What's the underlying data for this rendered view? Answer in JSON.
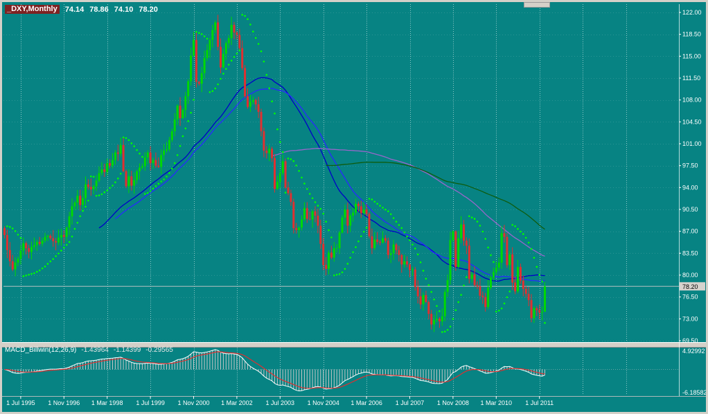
{
  "header": {
    "symbol": "_DXY,Monthly",
    "open": "74.14",
    "high": "78.86",
    "low": "74.10",
    "close": "78.20"
  },
  "price_axis": {
    "ticks": [
      {
        "label": "122.00",
        "value": 122.0
      },
      {
        "label": "118.50",
        "value": 118.5
      },
      {
        "label": "115.00",
        "value": 115.0
      },
      {
        "label": "111.50",
        "value": 111.5
      },
      {
        "label": "108.00",
        "value": 108.0
      },
      {
        "label": "104.50",
        "value": 104.5
      },
      {
        "label": "101.00",
        "value": 101.0
      },
      {
        "label": "97.50",
        "value": 97.5
      },
      {
        "label": "94.00",
        "value": 94.0
      },
      {
        "label": "90.50",
        "value": 90.5
      },
      {
        "label": "87.00",
        "value": 87.0
      },
      {
        "label": "83.50",
        "value": 83.5
      },
      {
        "label": "80.00",
        "value": 80.0
      },
      {
        "label": "76.50",
        "value": 76.5
      },
      {
        "label": "73.00",
        "value": 73.0
      },
      {
        "label": "69.50",
        "value": 69.5
      }
    ],
    "current": {
      "label": "78.20",
      "value": 78.2
    }
  },
  "time_axis": {
    "labels": [
      {
        "text": "1 Jul 1995",
        "m": 6
      },
      {
        "text": "1 Nov 1996",
        "m": 22
      },
      {
        "text": "1 Mar 1998",
        "m": 38
      },
      {
        "text": "1 Jul 1999",
        "m": 54
      },
      {
        "text": "1 Nov 2000",
        "m": 70
      },
      {
        "text": "1 Mar 2002",
        "m": 86
      },
      {
        "text": "1 Jul 2003",
        "m": 102
      },
      {
        "text": "1 Nov 2004",
        "m": 118
      },
      {
        "text": "1 Mar 2006",
        "m": 134
      },
      {
        "text": "1 Jul 2007",
        "m": 150
      },
      {
        "text": "1 Nov 2008",
        "m": 166
      },
      {
        "text": "1 Mar 2010",
        "m": 182
      },
      {
        "text": "1 Jul 2011",
        "m": 198
      }
    ]
  },
  "macd": {
    "title": "MACD_Billwin(12,26,9)",
    "value_macd": "-1.43964",
    "value_signal": "-1.14399",
    "value_osma": "-0.29565",
    "axis": {
      "max": 4.92992,
      "max_label": "4.92992",
      "min": -6.18582,
      "min_label": "-6.18582"
    }
  },
  "colors": {
    "background": "#078383",
    "frame": "#d4d0c8",
    "up": "#00d800",
    "down": "#e03030",
    "sar": "#00ff00",
    "grid": "#ffffff",
    "axis_text": "#ffffff",
    "hist": "#c8c8c8",
    "macd_line": "#ffffff",
    "signal_line": "#e03030",
    "price_line": "#c8c8c8"
  },
  "chart_data": {
    "type": "candlestick",
    "symbol": "_DXY",
    "timeframe": "Monthly",
    "x_range": [
      "1995-01",
      "2011-09"
    ],
    "ylim": [
      69.5,
      122.0
    ],
    "grid": "vertical-dashed",
    "first_open": 87.5,
    "monthly_closes": {
      "1995": [
        86.4,
        84.0,
        82.2,
        80.9,
        82.0,
        82.6,
        83.9,
        85.1,
        84.3,
        83.7,
        84.5,
        84.8
      ],
      "1996": [
        85.3,
        85.0,
        85.5,
        86.1,
        86.3,
        85.9,
        85.4,
        85.2,
        86.0,
        86.4,
        86.1,
        87.6
      ],
      "1997": [
        89.4,
        91.0,
        91.6,
        92.7,
        91.2,
        92.3,
        94.5,
        94.1,
        93.7,
        94.2,
        95.1,
        96.3
      ],
      "1998": [
        96.9,
        96.5,
        97.9,
        97.5,
        98.4,
        99.6,
        99.4,
        100.8,
        96.6,
        94.2,
        95.8,
        94.3
      ],
      "1999": [
        95.2,
        96.6,
        97.2,
        97.4,
        98.8,
        99.6,
        97.9,
        98.4,
        97.5,
        97.3,
        99.2,
        99.9
      ],
      "2000": [
        100.1,
        101.6,
        103.0,
        104.9,
        107.1,
        105.1,
        106.4,
        108.6,
        111.0,
        115.1,
        117.6,
        110.9
      ],
      "2001": [
        110.6,
        112.3,
        114.7,
        116.0,
        117.6,
        119.2,
        120.4,
        116.5,
        113.2,
        115.4,
        117.1,
        117.9
      ],
      "2002": [
        120.0,
        118.8,
        118.4,
        116.3,
        113.1,
        108.6,
        106.9,
        107.7,
        108.0,
        107.3,
        106.1,
        103.0
      ],
      "2003": [
        99.9,
        99.5,
        100.2,
        98.7,
        93.8,
        94.9,
        96.3,
        98.2,
        94.0,
        93.1,
        91.7,
        87.5
      ],
      "2004": [
        87.2,
        87.6,
        88.9,
        90.7,
        89.0,
        88.9,
        90.2,
        89.5,
        87.9,
        85.0,
        81.6,
        81.0
      ],
      "2005": [
        83.6,
        82.8,
        84.3,
        84.3,
        86.8,
        89.2,
        90.5,
        87.9,
        89.5,
        90.0,
        91.4,
        91.0
      ],
      "2006": [
        89.9,
        90.5,
        89.8,
        86.2,
        84.3,
        85.7,
        85.3,
        85.2,
        85.9,
        85.5,
        83.2,
        83.5
      ],
      "2007": [
        84.9,
        84.0,
        83.2,
        81.7,
        82.2,
        81.7,
        80.8,
        80.9,
        78.1,
        76.6,
        75.3,
        76.8
      ],
      "2008": [
        75.7,
        73.8,
        72.1,
        72.8,
        73.0,
        72.6,
        73.4,
        77.3,
        79.2,
        85.6,
        87.0,
        81.3
      ],
      "2009": [
        85.9,
        88.1,
        85.5,
        84.7,
        79.4,
        80.1,
        78.4,
        78.2,
        76.7,
        76.5,
        74.9,
        78.0
      ],
      "2010": [
        79.6,
        80.5,
        81.2,
        82.0,
        86.7,
        86.1,
        81.6,
        83.3,
        78.8,
        77.4,
        81.3,
        79.1
      ],
      "2011": [
        77.8,
        77.0,
        76.0,
        73.1,
        74.7,
        74.4,
        74.0,
        74.1,
        78.2
      ]
    },
    "last_bar": {
      "open": 74.14,
      "high": 78.86,
      "low": 74.1,
      "close": 78.2
    },
    "overlays": [
      {
        "name": "ma-blue-fast",
        "period": 36,
        "color": "#0000c8"
      },
      {
        "name": "ma-blue-slow",
        "period": 42,
        "color": "#2929ff"
      },
      {
        "name": "ma-long-purple",
        "period": 100,
        "color": "#9966cc"
      },
      {
        "name": "ma-long-green",
        "period": 120,
        "color": "#0e5c0e"
      }
    ],
    "sar": {
      "step": 0.02,
      "max": 0.2,
      "color": "#00ff00"
    },
    "indicator": {
      "name": "MACD_Billwin",
      "params": [
        12,
        26,
        9
      ],
      "current": {
        "macd": -1.43964,
        "signal": -1.14399,
        "osma": -0.29565
      }
    }
  }
}
